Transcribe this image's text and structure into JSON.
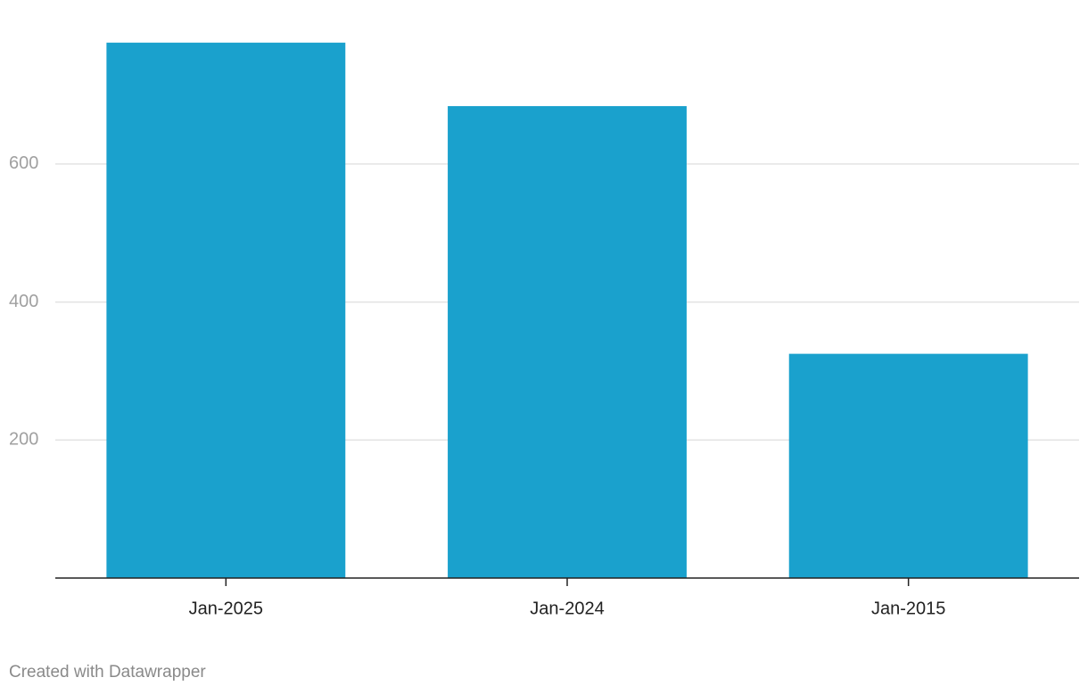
{
  "chart_data": {
    "type": "bar",
    "categories": [
      "Jan-2025",
      "Jan-2024",
      "Jan-2015"
    ],
    "values": [
      776,
      684,
      325
    ],
    "color": "#1aa1cd",
    "ylim": [
      0,
      780
    ],
    "yticks": [
      200,
      400,
      600
    ],
    "grid": true,
    "credit": "Created with Datawrapper"
  }
}
